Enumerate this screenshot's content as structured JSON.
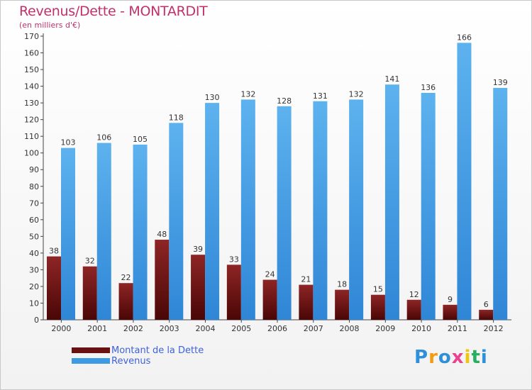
{
  "header": {
    "title": "Revenus/Dette - MONTARDIT",
    "subtitle": "(en milliers d'€)"
  },
  "chart_data": {
    "type": "bar",
    "title": "Revenus/Dette - MONTARDIT",
    "ylabel": "(en milliers d'€)",
    "xlabel": "",
    "categories": [
      "2000",
      "2001",
      "2002",
      "2003",
      "2004",
      "2005",
      "2006",
      "2007",
      "2008",
      "2009",
      "2010",
      "2011",
      "2012"
    ],
    "series": [
      {
        "name": "Montant de la Dette",
        "color": "#7a1a1a",
        "values": [
          38,
          32,
          22,
          48,
          39,
          33,
          24,
          21,
          18,
          15,
          12,
          9,
          6
        ]
      },
      {
        "name": "Revenus",
        "color": "#4ea6e8",
        "values": [
          103,
          106,
          105,
          118,
          130,
          132,
          128,
          131,
          132,
          141,
          136,
          166,
          139
        ]
      }
    ],
    "ylim": [
      0,
      170
    ],
    "yticks": [
      0,
      10,
      20,
      30,
      40,
      50,
      60,
      70,
      80,
      90,
      100,
      110,
      120,
      130,
      140,
      150,
      160,
      170
    ],
    "grid": false,
    "legend": "bottom-left"
  },
  "legend": {
    "items": [
      {
        "label": "Montant de la Dette",
        "color": "#7a1a1a"
      },
      {
        "label": "Revenus",
        "color": "#4ea6e8"
      }
    ]
  },
  "brand": {
    "letters": [
      "P",
      "r",
      "o",
      "x",
      "i",
      "t",
      "i"
    ],
    "colors": [
      "#2f8fd8",
      "#f39c12",
      "#2f8fd8",
      "#e84393",
      "#f1c40f",
      "#27ae60",
      "#2f8fd8"
    ]
  }
}
